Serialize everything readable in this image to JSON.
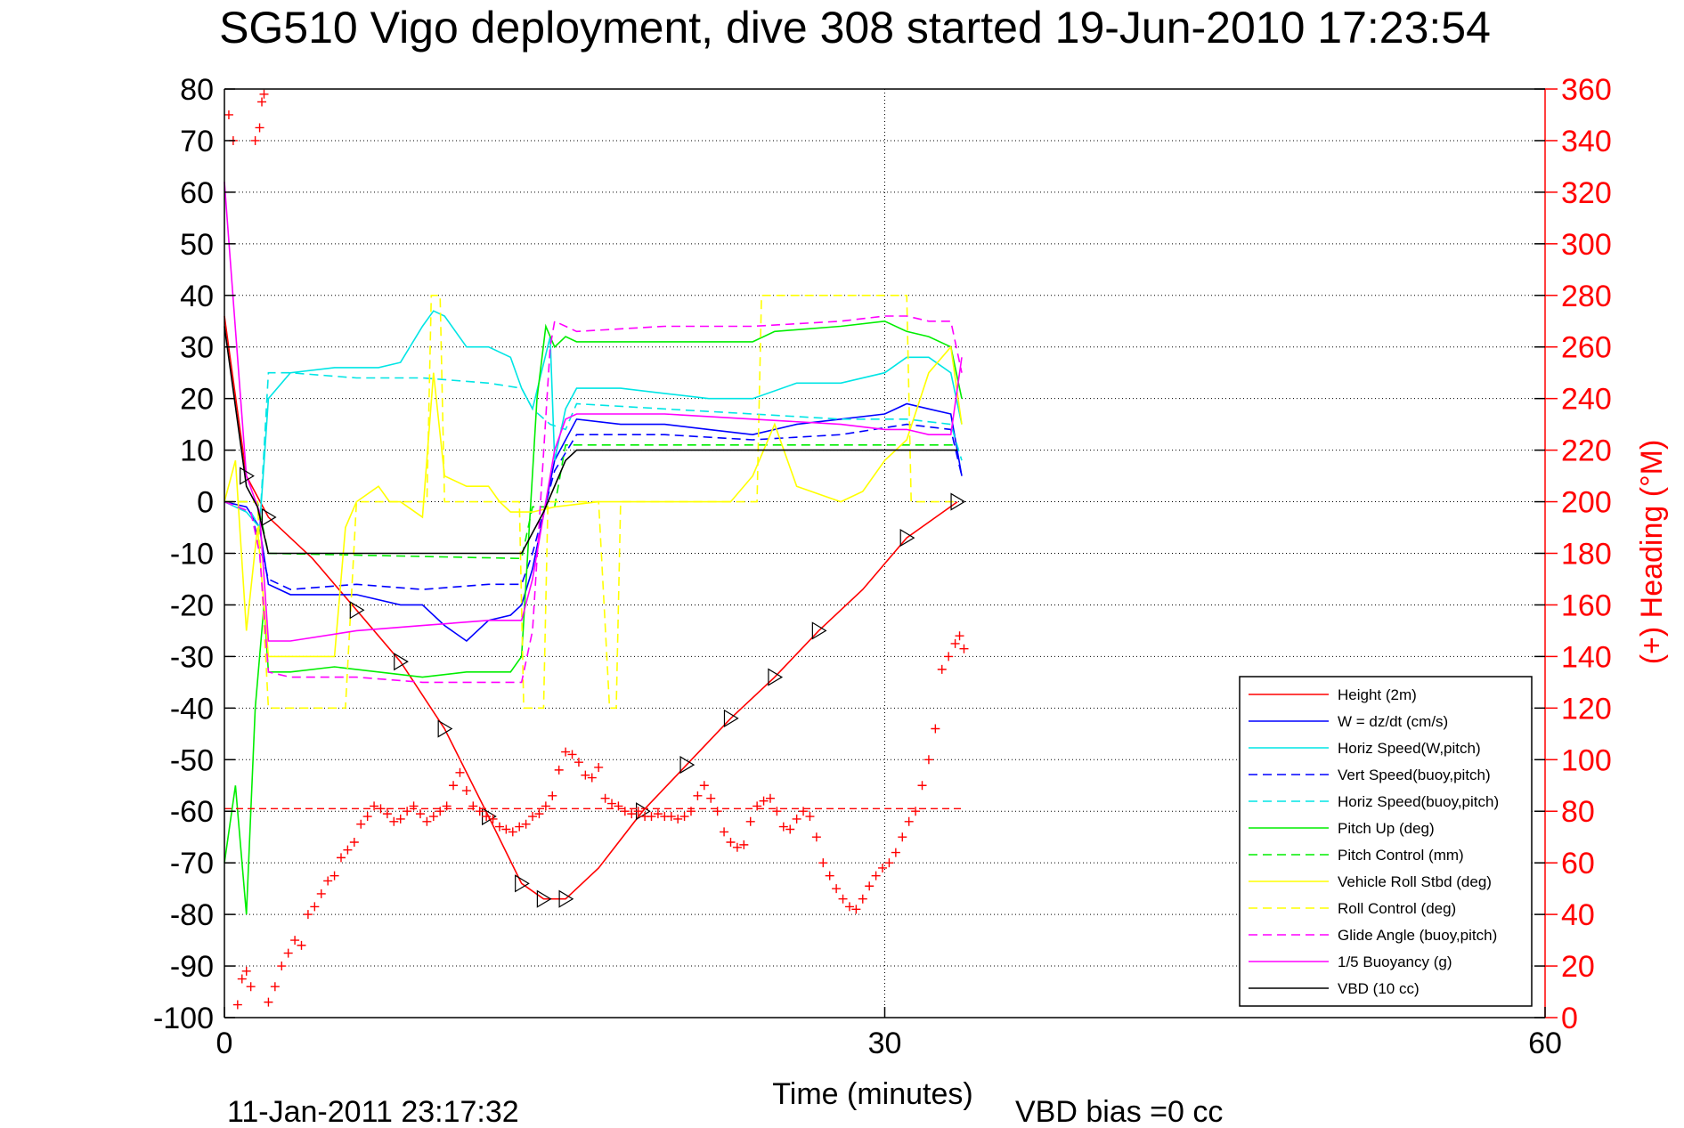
{
  "chart_data": {
    "type": "line",
    "title": "SG510 Vigo deployment, dive 308 started 19-Jun-2010 17:23:54",
    "xlabel": "Time (minutes)",
    "ylabel": "",
    "y2label": "(+) Heading (°M)",
    "footer_left": "11-Jan-2011 23:17:32",
    "footer_right": "VBD bias =0 cc",
    "xlim": [
      0,
      60
    ],
    "ylim": [
      -100,
      80
    ],
    "y2lim": [
      0,
      360
    ],
    "xticks": [
      "0",
      "30",
      "60"
    ],
    "yticks": [
      "80",
      "70",
      "60",
      "50",
      "40",
      "30",
      "20",
      "10",
      "0",
      "-10",
      "-20",
      "-30",
      "-40",
      "-50",
      "-60",
      "-70",
      "-80",
      "-90",
      "-100"
    ],
    "y2ticks": [
      "360",
      "340",
      "320",
      "300",
      "280",
      "260",
      "240",
      "220",
      "200",
      "180",
      "160",
      "140",
      "120",
      "100",
      "80",
      "60",
      "40",
      "20",
      "0"
    ],
    "grid": true,
    "legend_position": "bottom-right",
    "colors": {
      "axis2": "#ff0000",
      "axis": "#000000"
    },
    "series": [
      {
        "name": "Height (2m)",
        "color": "#ff0000",
        "dash": "solid",
        "x": [
          0,
          1,
          2,
          4,
          6,
          8,
          10,
          12,
          13.5,
          14.5,
          15.5,
          17,
          19,
          21,
          23,
          25,
          27,
          29,
          31,
          33.3
        ],
        "y": [
          36,
          5,
          -3,
          -11,
          -21,
          -31,
          -44,
          -61,
          -74,
          -77,
          -77,
          -71,
          -60,
          -51,
          -42,
          -34,
          -25,
          -17,
          -7,
          0
        ]
      },
      {
        "name": "W = dz/dt (cm/s)",
        "color": "#0000ff",
        "dash": "solid",
        "x": [
          0,
          1,
          1.6,
          2,
          3,
          6,
          8,
          9,
          10,
          11,
          12,
          13,
          13.5,
          14,
          15,
          16,
          18,
          20,
          22,
          24,
          26,
          28,
          30,
          31,
          32,
          33,
          33.5
        ],
        "y": [
          0,
          -1,
          -5,
          -16,
          -18,
          -18,
          -20,
          -20,
          -24,
          -27,
          -23,
          -22,
          -20,
          -13,
          8,
          16,
          15,
          15,
          14,
          13,
          15,
          16,
          17,
          19,
          18,
          17,
          5
        ]
      },
      {
        "name": "Horiz Speed(W,pitch)",
        "color": "#00e5e5",
        "dash": "solid",
        "x": [
          0,
          1,
          1.6,
          2,
          3,
          5,
          7,
          8,
          9,
          9.5,
          10,
          11,
          12,
          13,
          13.5,
          14,
          14.8,
          15,
          15.5,
          16,
          18,
          20,
          22,
          24,
          26,
          28,
          30,
          31,
          32,
          33,
          33.5
        ],
        "y": [
          0,
          -2,
          -5,
          20,
          25,
          26,
          26,
          27,
          34,
          37,
          36,
          30,
          30,
          28,
          22,
          18,
          32,
          8,
          18,
          22,
          22,
          21,
          20,
          20,
          23,
          23,
          25,
          28,
          28,
          25,
          15
        ]
      },
      {
        "name": "Vert Speed(buoy,pitch)",
        "color": "#0000ff",
        "dash": "dash",
        "x": [
          0,
          1.2,
          2,
          3,
          6,
          9,
          12,
          13.5,
          14,
          15,
          16,
          20,
          24,
          28,
          31,
          33,
          33.5
        ],
        "y": [
          0,
          -2,
          -15,
          -17,
          -16,
          -17,
          -16,
          -16,
          -10,
          6,
          13,
          13,
          12,
          13,
          15,
          14,
          5
        ]
      },
      {
        "name": "Horiz Speed(buoy,pitch)",
        "color": "#00e5e5",
        "dash": "dash",
        "x": [
          0,
          1.2,
          1.6,
          2,
          3,
          6,
          9,
          12,
          13.5,
          14,
          14.8,
          15.5,
          16,
          20,
          24,
          28,
          31,
          33,
          33.5
        ],
        "y": [
          0,
          -2,
          -5,
          25,
          25,
          24,
          24,
          23,
          22,
          18,
          15,
          14,
          19,
          18,
          17,
          16,
          16,
          15,
          8
        ]
      },
      {
        "name": "Pitch Up (deg)",
        "color": "#00ee00",
        "dash": "solid",
        "x": [
          0,
          0.5,
          1,
          1.4,
          1.8,
          2,
          3,
          5,
          7,
          9,
          11,
          13,
          13.5,
          14.2,
          14.6,
          15,
          15.5,
          16,
          20,
          24,
          25,
          28,
          30,
          31,
          32,
          33,
          33.5
        ],
        "y": [
          -70,
          -55,
          -80,
          -40,
          -20,
          -33,
          -33,
          -32,
          -33,
          -34,
          -33,
          -33,
          -30,
          20,
          34,
          30,
          32,
          31,
          31,
          31,
          33,
          34,
          35,
          33,
          32,
          30,
          20
        ]
      },
      {
        "name": "Pitch Control (mm)",
        "color": "#00ee00",
        "dash": "dash",
        "x": [
          0,
          1.5,
          2,
          13.5,
          14,
          15,
          15.5,
          33.3
        ],
        "y": [
          0,
          0,
          -10,
          -11,
          -1,
          -1,
          11,
          11
        ]
      },
      {
        "name": "Vehicle Roll Stbd (deg)",
        "color": "#ffff00",
        "dash": "solid",
        "x": [
          0,
          0.5,
          1,
          1.5,
          2,
          3,
          5,
          5.5,
          6,
          7,
          7.5,
          8,
          9,
          9.5,
          10,
          11,
          12,
          12.5,
          13,
          14,
          15,
          17,
          19,
          21,
          23,
          24,
          25,
          26,
          28,
          29,
          30,
          31,
          32,
          33,
          33.5
        ],
        "y": [
          0,
          8,
          -25,
          -5,
          -30,
          -30,
          -30,
          -5,
          0,
          3,
          0,
          0,
          -3,
          25,
          5,
          3,
          3,
          0,
          -2,
          -2,
          -1,
          0,
          0,
          0,
          0,
          5,
          15,
          3,
          0,
          2,
          8,
          12,
          25,
          30,
          15
        ]
      },
      {
        "name": "Roll Control (deg)",
        "color": "#ffff00",
        "dash": "dash",
        "x": [
          0,
          1.5,
          2,
          5.5,
          6,
          9.2,
          9.4,
          9.8,
          10,
          13.4,
          13.6,
          14.5,
          14.7,
          17,
          17.5,
          17.8,
          18,
          24.2,
          24.4,
          28.7,
          28.9,
          31,
          31.2,
          33.3
        ],
        "y": [
          0,
          0,
          -40,
          -40,
          0,
          0,
          40,
          40,
          0,
          0,
          -40,
          -40,
          0,
          0,
          -40,
          -40,
          0,
          0,
          40,
          40,
          40,
          40,
          0,
          0
        ]
      },
      {
        "name": "Glide Angle (buoy,pitch)",
        "color": "#ff00ff",
        "dash": "dash",
        "x": [
          0,
          1.2,
          1.6,
          2,
          3,
          6,
          9,
          12,
          13.5,
          14,
          14.8,
          15,
          15.5,
          16,
          20,
          24,
          28,
          30,
          31,
          32,
          33,
          33.5
        ],
        "y": [
          0,
          -2,
          -10,
          -33,
          -34,
          -34,
          -35,
          -35,
          -35,
          -25,
          30,
          35,
          34,
          33,
          34,
          34,
          35,
          36,
          36,
          35,
          35,
          25
        ]
      },
      {
        "name": "1/5 Buoyancy (g)",
        "color": "#ff00ff",
        "dash": "solid",
        "x": [
          0,
          1,
          1.6,
          2,
          3,
          6,
          9,
          12,
          13.5,
          14,
          15,
          15.5,
          16,
          20,
          24,
          28,
          30,
          31,
          32,
          33,
          33.5
        ],
        "y": [
          62,
          5,
          -2,
          -27,
          -27,
          -25,
          -24,
          -23,
          -23,
          -15,
          10,
          16,
          17,
          17,
          16,
          15,
          14,
          14,
          13,
          13,
          28
        ]
      },
      {
        "name": "VBD (10 cc)",
        "color": "#000000",
        "dash": "solid",
        "x": [
          0,
          1,
          1.5,
          2,
          13.5,
          14.5,
          15.5,
          16,
          33.3
        ],
        "y": [
          34,
          3,
          -1,
          -10,
          -10,
          -2,
          8,
          10,
          10
        ]
      }
    ],
    "heading_series": {
      "name": "Heading",
      "color": "#ff0000",
      "axis": "right",
      "marker": "+",
      "reference_line": 81,
      "x": [
        0.2,
        0.4,
        0.6,
        0.8,
        1.0,
        1.2,
        1.4,
        1.6,
        1.7,
        1.8,
        2.0,
        2.3,
        2.6,
        2.9,
        3.2,
        3.5,
        3.8,
        4.1,
        4.4,
        4.7,
        5.0,
        5.3,
        5.6,
        5.9,
        6.2,
        6.5,
        6.8,
        7.1,
        7.4,
        7.7,
        8.0,
        8.3,
        8.6,
        8.9,
        9.2,
        9.5,
        9.8,
        10.1,
        10.4,
        10.7,
        11.0,
        11.3,
        11.6,
        11.9,
        12.2,
        12.5,
        12.8,
        13.1,
        13.4,
        13.7,
        14.0,
        14.3,
        14.6,
        14.9,
        15.2,
        15.5,
        15.8,
        16.1,
        16.4,
        16.7,
        17.0,
        17.3,
        17.6,
        17.9,
        18.2,
        18.5,
        18.8,
        19.1,
        19.4,
        19.7,
        20.0,
        20.3,
        20.6,
        20.9,
        21.2,
        21.5,
        21.8,
        22.1,
        22.4,
        22.7,
        23.0,
        23.3,
        23.6,
        23.9,
        24.2,
        24.5,
        24.8,
        25.1,
        25.4,
        25.7,
        26.0,
        26.3,
        26.6,
        26.9,
        27.2,
        27.5,
        27.8,
        28.1,
        28.4,
        28.7,
        29.0,
        29.3,
        29.6,
        29.9,
        30.2,
        30.5,
        30.8,
        31.1,
        31.4,
        31.7,
        32.0,
        32.3,
        32.6,
        32.9,
        33.2,
        33.4,
        33.6
      ],
      "y": [
        350,
        340,
        5,
        15,
        18,
        12,
        340,
        345,
        355,
        358,
        6,
        12,
        20,
        25,
        30,
        28,
        40,
        43,
        48,
        53,
        55,
        62,
        65,
        68,
        75,
        78,
        82,
        81,
        79,
        76,
        77,
        80,
        82,
        79,
        76,
        78,
        80,
        82,
        90,
        95,
        88,
        82,
        80,
        78,
        77,
        74,
        73,
        72,
        74,
        75,
        78,
        79,
        82,
        86,
        96,
        103,
        102,
        99,
        94,
        93,
        97,
        85,
        83,
        82,
        80,
        79,
        80,
        78,
        78,
        79,
        78,
        78,
        77,
        78,
        80,
        86,
        90,
        85,
        80,
        72,
        68,
        66,
        67,
        76,
        82,
        84,
        85,
        80,
        74,
        73,
        77,
        80,
        78,
        70,
        60,
        55,
        50,
        46,
        43,
        42,
        46,
        51,
        55,
        58,
        60,
        64,
        70,
        76,
        80,
        90,
        100,
        112,
        135,
        140,
        145,
        148,
        143
      ]
    }
  }
}
